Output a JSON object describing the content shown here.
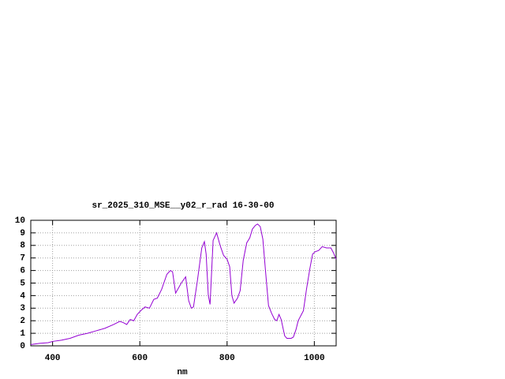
{
  "chart_data": {
    "type": "line",
    "title": "sr_2025_310_MSE__y02_r_rad 16-30-00",
    "x_label": "nm",
    "xlim": [
      350,
      1050
    ],
    "xticks": [
      400,
      600,
      800,
      1000
    ],
    "ylim": [
      0,
      10
    ],
    "yticks": [
      0,
      1,
      2,
      3,
      4,
      5,
      6,
      7,
      8,
      9,
      10
    ],
    "grid": true,
    "series": [
      {
        "color": "#9400d3",
        "x": [
          350,
          370,
          390,
          400,
          420,
          440,
          460,
          480,
          500,
          520,
          540,
          554,
          562,
          570,
          578,
          586,
          594,
          602,
          612,
          622,
          632,
          640,
          650,
          662,
          670,
          675,
          682,
          695,
          705,
          712,
          718,
          723,
          732,
          742,
          748,
          752,
          757,
          761,
          768,
          776,
          784,
          792,
          800,
          806,
          811,
          816,
          824,
          830,
          837,
          845,
          852,
          858,
          865,
          870,
          876,
          882,
          888,
          895,
          902,
          909,
          914,
          919,
          924,
          932,
          937,
          947,
          952,
          958,
          963,
          975,
          982,
          990,
          996,
          1002,
          1010,
          1018,
          1028,
          1038,
          1044,
          1050
        ],
        "values": [
          0.1,
          0.2,
          0.25,
          0.35,
          0.45,
          0.6,
          0.85,
          1.0,
          1.2,
          1.4,
          1.7,
          1.95,
          1.85,
          1.7,
          2.1,
          2.0,
          2.5,
          2.8,
          3.1,
          3.0,
          3.7,
          3.8,
          4.5,
          5.7,
          6.0,
          5.9,
          4.2,
          5.0,
          5.5,
          3.6,
          3.0,
          3.1,
          5.2,
          7.8,
          8.3,
          7.3,
          4.0,
          3.3,
          8.4,
          9.0,
          8.0,
          7.2,
          6.9,
          6.3,
          4.0,
          3.4,
          3.8,
          4.4,
          6.8,
          8.2,
          8.6,
          9.3,
          9.6,
          9.7,
          9.5,
          8.5,
          6.0,
          3.2,
          2.6,
          2.1,
          2.0,
          2.5,
          2.1,
          0.8,
          0.6,
          0.6,
          0.7,
          1.3,
          2.0,
          2.8,
          4.5,
          6.2,
          7.3,
          7.5,
          7.6,
          7.9,
          7.8,
          7.8,
          7.4,
          6.9
        ]
      }
    ]
  }
}
